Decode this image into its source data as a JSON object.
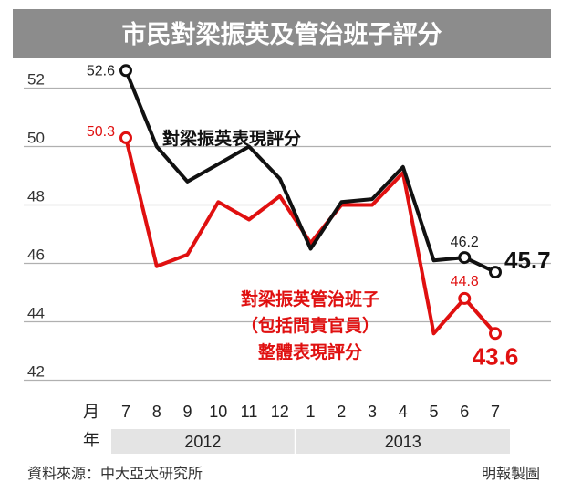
{
  "chart_data": {
    "type": "line",
    "title": "市民對梁振英及管治班子評分",
    "categories": [
      "7",
      "8",
      "9",
      "10",
      "11",
      "12",
      "1",
      "2",
      "3",
      "4",
      "5",
      "6",
      "7"
    ],
    "x_axis_month_label": "月",
    "x_axis_year_label": "年",
    "years": [
      {
        "label": "2012",
        "from": 0,
        "to": 5
      },
      {
        "label": "2013",
        "from": 6,
        "to": 12
      }
    ],
    "y_ticks": [
      42,
      44,
      46,
      48,
      50,
      52
    ],
    "ylim": [
      42,
      53
    ],
    "grid": true,
    "series": [
      {
        "name": "對梁振英表現評分",
        "color": "#111111",
        "values": [
          52.6,
          50.0,
          48.8,
          49.4,
          50.0,
          48.9,
          46.5,
          48.1,
          48.2,
          49.3,
          46.1,
          46.2,
          45.7
        ],
        "labels": [
          {
            "index": 0,
            "text": "52.6"
          },
          {
            "index": 11,
            "text": "46.2"
          },
          {
            "index": 12,
            "text": "45.7"
          }
        ]
      },
      {
        "name_lines": [
          "對梁振英管治班子",
          "（包括問責官員）",
          "整體表現評分"
        ],
        "color": "#e01010",
        "values": [
          50.3,
          45.9,
          46.3,
          48.1,
          47.5,
          48.3,
          46.7,
          48.0,
          48.0,
          49.1,
          43.6,
          44.8,
          43.6
        ],
        "labels": [
          {
            "index": 0,
            "text": "50.3"
          },
          {
            "index": 11,
            "text": "44.8"
          },
          {
            "index": 12,
            "text": "43.6"
          }
        ]
      }
    ],
    "source": "資料來源：中大亞太研究所",
    "credit": "明報製圖"
  },
  "colors": {
    "title_bg": "#8c8c8c",
    "grid": "#b0b0b0",
    "year_band": "#e4e4e4"
  }
}
